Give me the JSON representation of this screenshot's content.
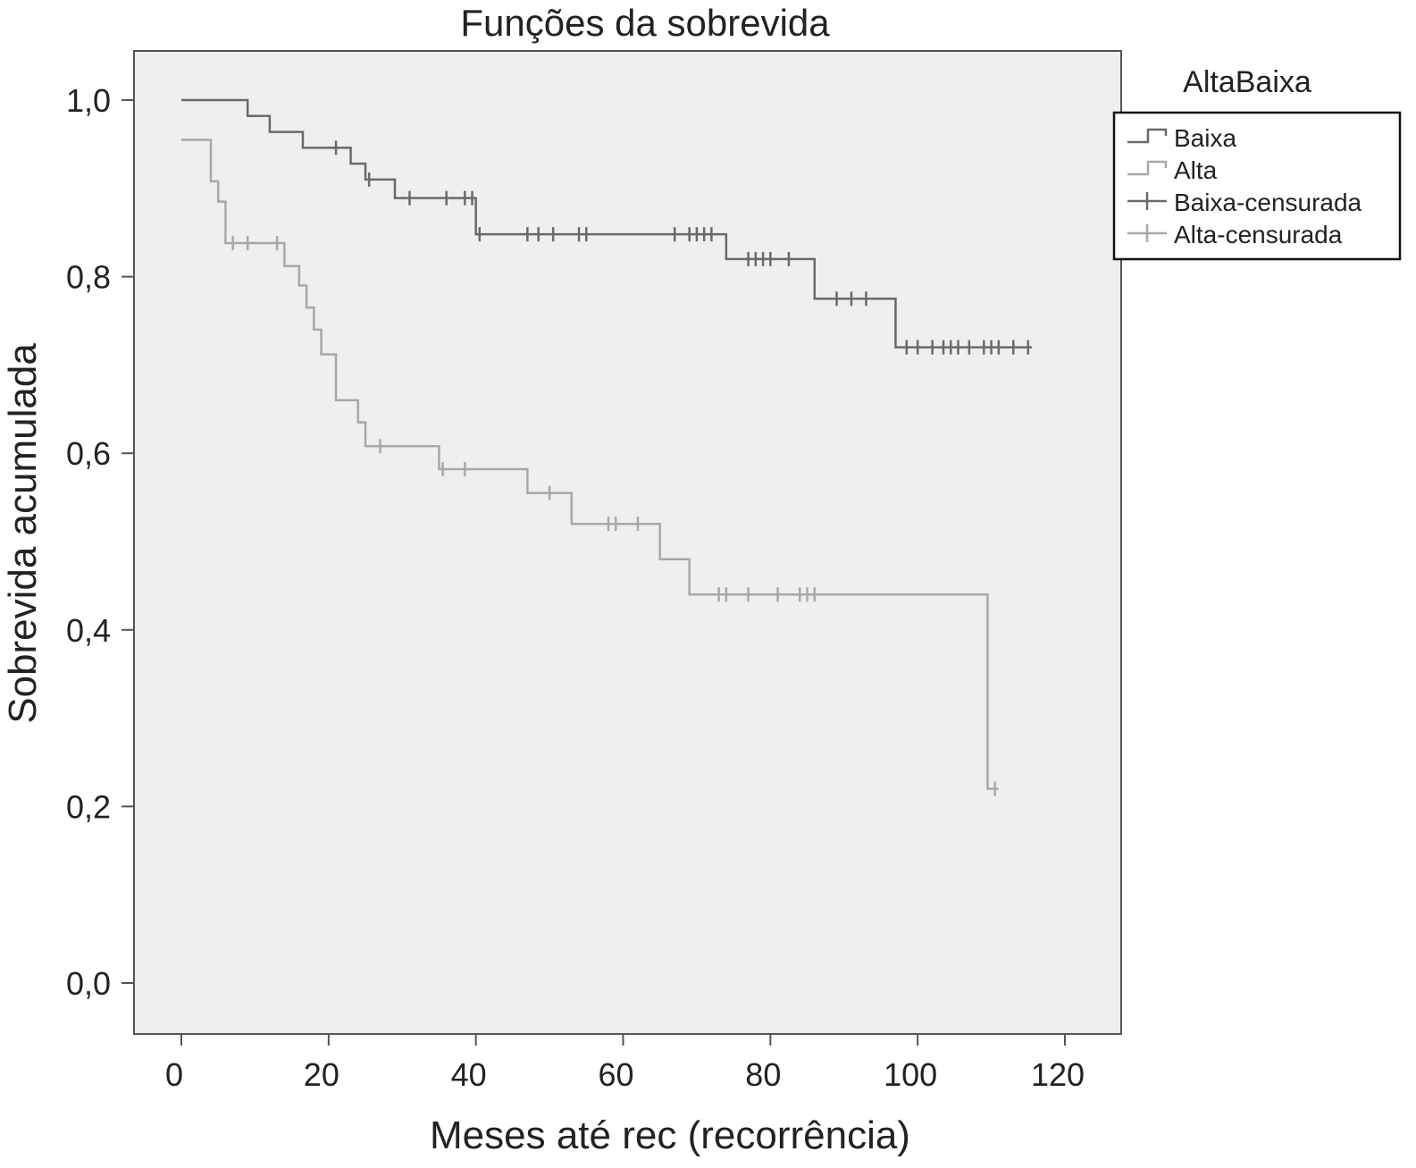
{
  "chart_data": {
    "type": "line",
    "title": "Funções da sobrevida",
    "xlabel": "Meses até rec (recorrência)",
    "ylabel": "Sobrevida acumulada",
    "xlim": [
      0,
      120
    ],
    "ylim": [
      0,
      1
    ],
    "x_ticks": [
      0,
      20,
      40,
      60,
      80,
      100,
      120
    ],
    "x_tick_labels": [
      "0",
      "20",
      "40",
      "60",
      "80",
      "100",
      "120"
    ],
    "y_ticks": [
      0,
      0.2,
      0.4,
      0.6,
      0.8,
      1.0
    ],
    "y_tick_labels": [
      "0,0",
      "0,2",
      "0,4",
      "0,6",
      "0,8",
      "1,0"
    ],
    "grid": false,
    "background": "#efefef",
    "legend": {
      "title": "AltaBaixa",
      "position": "right",
      "entries": [
        "Baixa",
        "Alta",
        "Baixa-censurada",
        "Alta-censurada"
      ]
    },
    "series": [
      {
        "name": "Baixa",
        "color": "#6a6a6a",
        "steps": [
          [
            0,
            1.0
          ],
          [
            9,
            0.982
          ],
          [
            12,
            0.964
          ],
          [
            16.5,
            0.946
          ],
          [
            23,
            0.928
          ],
          [
            25,
            0.91
          ],
          [
            29,
            0.889
          ],
          [
            40,
            0.848
          ],
          [
            74,
            0.82
          ],
          [
            86,
            0.775
          ],
          [
            97,
            0.72
          ],
          [
            115.5,
            0.72
          ]
        ],
        "censored": [
          [
            21,
            0.946
          ],
          [
            25.5,
            0.91
          ],
          [
            31,
            0.889
          ],
          [
            36,
            0.889
          ],
          [
            38.5,
            0.889
          ],
          [
            39.5,
            0.889
          ],
          [
            40.5,
            0.848
          ],
          [
            47,
            0.848
          ],
          [
            48.5,
            0.848
          ],
          [
            50.5,
            0.848
          ],
          [
            54,
            0.848
          ],
          [
            55,
            0.848
          ],
          [
            67,
            0.848
          ],
          [
            69,
            0.848
          ],
          [
            70,
            0.848
          ],
          [
            71,
            0.848
          ],
          [
            72,
            0.848
          ],
          [
            77,
            0.82
          ],
          [
            78,
            0.82
          ],
          [
            79,
            0.82
          ],
          [
            80,
            0.82
          ],
          [
            82.5,
            0.82
          ],
          [
            89,
            0.775
          ],
          [
            91,
            0.775
          ],
          [
            93,
            0.775
          ],
          [
            98.5,
            0.72
          ],
          [
            100,
            0.72
          ],
          [
            102,
            0.72
          ],
          [
            103.5,
            0.72
          ],
          [
            104.5,
            0.72
          ],
          [
            105.5,
            0.72
          ],
          [
            107,
            0.72
          ],
          [
            109,
            0.72
          ],
          [
            110,
            0.72
          ],
          [
            111,
            0.72
          ],
          [
            113,
            0.72
          ],
          [
            115,
            0.72
          ]
        ]
      },
      {
        "name": "Alta",
        "color": "#a8a8a8",
        "steps": [
          [
            0,
            0.955
          ],
          [
            4,
            0.908
          ],
          [
            5,
            0.885
          ],
          [
            6,
            0.838
          ],
          [
            14,
            0.812
          ],
          [
            16,
            0.79
          ],
          [
            17,
            0.765
          ],
          [
            18,
            0.74
          ],
          [
            19,
            0.712
          ],
          [
            21,
            0.66
          ],
          [
            24,
            0.635
          ],
          [
            25,
            0.608
          ],
          [
            35,
            0.582
          ],
          [
            47,
            0.555
          ],
          [
            53,
            0.52
          ],
          [
            65,
            0.48
          ],
          [
            69,
            0.44
          ],
          [
            109.5,
            0.22
          ],
          [
            111,
            0.22
          ]
        ],
        "censored": [
          [
            7,
            0.838
          ],
          [
            9,
            0.838
          ],
          [
            13,
            0.838
          ],
          [
            27,
            0.608
          ],
          [
            35.5,
            0.582
          ],
          [
            38.5,
            0.582
          ],
          [
            50,
            0.555
          ],
          [
            58,
            0.52
          ],
          [
            59,
            0.52
          ],
          [
            62,
            0.52
          ],
          [
            73,
            0.44
          ],
          [
            74,
            0.44
          ],
          [
            77,
            0.44
          ],
          [
            81,
            0.44
          ],
          [
            84,
            0.44
          ],
          [
            85,
            0.44
          ],
          [
            86,
            0.44
          ],
          [
            110.5,
            0.22
          ]
        ]
      }
    ]
  }
}
